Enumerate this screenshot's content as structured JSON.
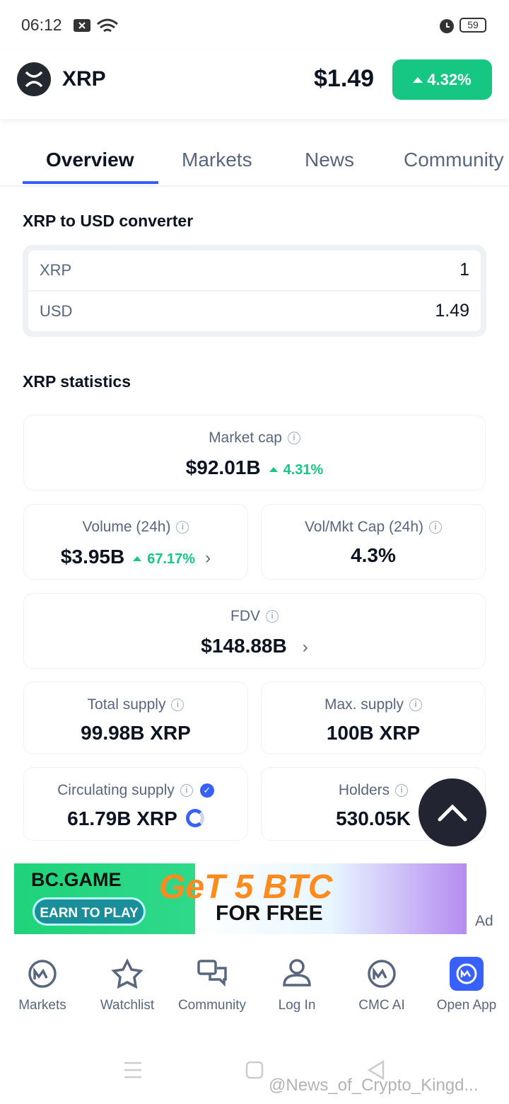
{
  "status_bar": {
    "time": "06:12",
    "battery": "59"
  },
  "header": {
    "symbol": "XRP",
    "price": "$1.49",
    "change": "4.32%"
  },
  "tabs": [
    "Overview",
    "Markets",
    "News",
    "Community"
  ],
  "converter": {
    "title": "XRP to USD converter",
    "rows": [
      [
        "XRP",
        "1"
      ],
      [
        "USD",
        "1.49"
      ]
    ]
  },
  "statistics": {
    "title": "XRP statistics",
    "cards": [
      {
        "label": "Market cap",
        "value": "$92.01B",
        "change": "4.31%"
      },
      {
        "label": "Volume (24h)",
        "value": "$3.95B",
        "change": "67.17%"
      },
      {
        "label": "Vol/Mkt Cap (24h)",
        "value": "4.3%"
      },
      {
        "label": "FDV",
        "value": "$148.88B"
      },
      {
        "label": "Total supply",
        "value": "99.98B XRP"
      },
      {
        "label": "Max. supply",
        "value": "100B XRP"
      },
      {
        "label": "Circulating supply",
        "value": "61.79B XRP"
      },
      {
        "label": "Holders",
        "value": "530.05K"
      }
    ]
  },
  "ad": {
    "brand": "BC.GAME",
    "button": "EARN TO PLAY",
    "headline": "GeT 5 BTC",
    "sub": "FOR FREE",
    "label": "Ad"
  },
  "nav": [
    "Markets",
    "Watchlist",
    "Community",
    "Log In",
    "CMC AI",
    "Open App"
  ],
  "watermark": "@News_of_Crypto_Kingd..."
}
